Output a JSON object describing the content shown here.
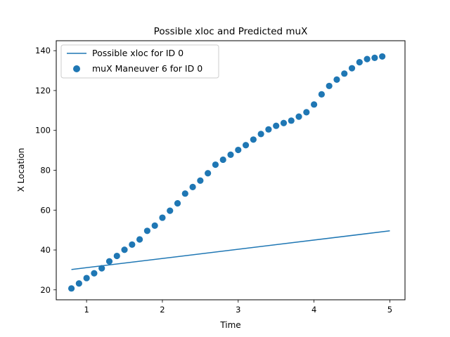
{
  "chart_data": {
    "type": "scatter",
    "title": "Possible xloc and Predicted muX",
    "xlabel": "Time",
    "ylabel": "X Location",
    "xlim": [
      0.6,
      5.2
    ],
    "ylim": [
      15,
      145
    ],
    "xticks": [
      1,
      2,
      3,
      4,
      5
    ],
    "yticks": [
      20,
      40,
      60,
      80,
      100,
      120,
      140
    ],
    "grid": false,
    "legend_position": "top-left",
    "colors": {
      "series": "#1f77b4"
    },
    "series": [
      {
        "name": "Possible xloc for ID 0",
        "kind": "line",
        "x": [
          0.8,
          5.0
        ],
        "y": [
          30.2,
          49.6
        ]
      },
      {
        "name": "muX Maneuver 6 for ID 0",
        "kind": "scatter",
        "x": [
          0.8,
          0.9,
          1.0,
          1.1,
          1.2,
          1.3,
          1.4,
          1.5,
          1.6,
          1.7,
          1.8,
          1.9,
          2.0,
          2.1,
          2.2,
          2.3,
          2.4,
          2.5,
          2.6,
          2.7,
          2.8,
          2.9,
          3.0,
          3.1,
          3.2,
          3.3,
          3.4,
          3.5,
          3.6,
          3.7,
          3.8,
          3.9,
          4.0,
          4.1,
          4.2,
          4.3,
          4.4,
          4.5,
          4.6,
          4.7,
          4.8,
          4.9
        ],
        "y": [
          20.7,
          23.2,
          25.9,
          28.3,
          30.8,
          34.3,
          37.0,
          40.1,
          42.7,
          45.3,
          49.6,
          52.2,
          56.2,
          59.7,
          63.4,
          68.3,
          71.6,
          74.8,
          78.5,
          82.8,
          85.3,
          87.8,
          90.2,
          92.6,
          95.4,
          98.2,
          100.5,
          102.3,
          103.7,
          104.9,
          106.9,
          109.1,
          113.0,
          118.1,
          122.3,
          125.5,
          128.5,
          131.2,
          134.2,
          135.8,
          136.4,
          137.1
        ]
      }
    ]
  }
}
